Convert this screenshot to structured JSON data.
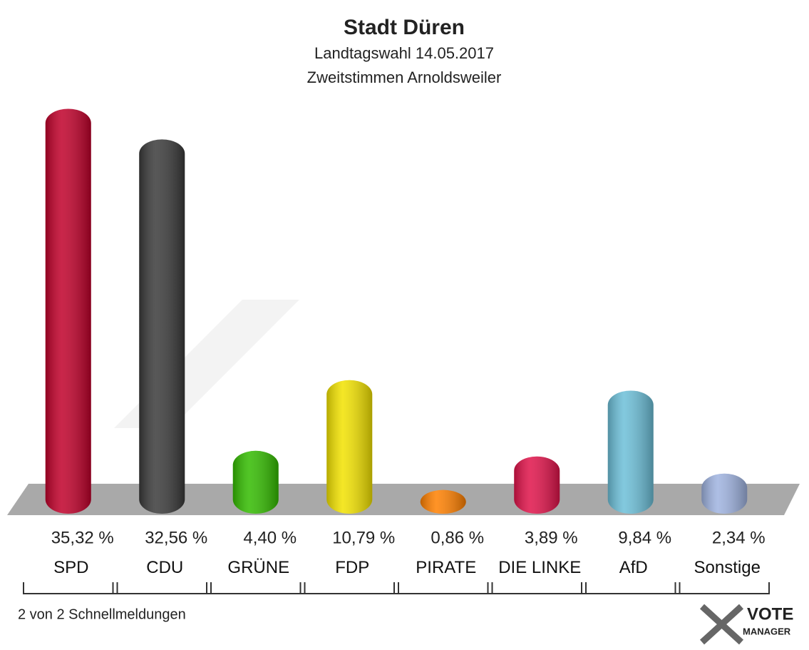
{
  "chart_data": {
    "type": "bar",
    "title": "Stadt Düren",
    "subtitle": [
      "Landtagswahl 14.05.2017",
      "Zweitstimmen Arnoldsweiler"
    ],
    "categories": [
      "SPD",
      "CDU",
      "GRÜNE",
      "FDP",
      "PIRATE",
      "DIE LINKE",
      "AfD",
      "Sonstige"
    ],
    "values": [
      35.32,
      32.56,
      4.4,
      10.79,
      0.86,
      3.89,
      9.84,
      2.34
    ],
    "value_labels": [
      "35,32 %",
      "32,56 %",
      "4,40 %",
      "10,79 %",
      "0,86 %",
      "3,89 %",
      "9,84 %",
      "2,34 %"
    ],
    "colors": [
      "#c0002a",
      "#3a3a3a",
      "#33bb00",
      "#f2e200",
      "#ff8000",
      "#e0134a",
      "#6cbfd8",
      "#9fb3e0"
    ],
    "footnote": "2 von 2 Schnellmeldungen",
    "logo": [
      "VOTE",
      "MANAGER"
    ]
  }
}
